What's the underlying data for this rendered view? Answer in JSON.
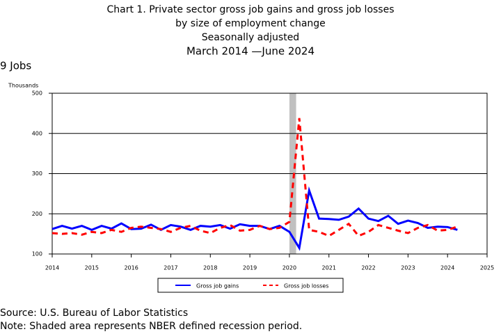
{
  "chart_data": {
    "type": "line",
    "title": [
      "Chart 1. Private sector gross job gains and gross job losses",
      "by size of employment change",
      "Seasonally adjusted",
      "March 2014 —June 2024"
    ],
    "subtitle": "9 Jobs",
    "y_label": "Thousands",
    "x": [
      2014,
      2014.25,
      2014.5,
      2014.75,
      2015,
      2015.25,
      2015.5,
      2015.75,
      2016,
      2016.25,
      2016.5,
      2016.75,
      2017,
      2017.25,
      2017.5,
      2017.75,
      2018,
      2018.25,
      2018.5,
      2018.75,
      2019,
      2019.25,
      2019.5,
      2019.75,
      2020,
      2020.25,
      2020.5,
      2020.75,
      2021,
      2021.25,
      2021.5,
      2021.75,
      2022,
      2022.25,
      2022.5,
      2022.75,
      2023,
      2023.25,
      2023.5,
      2023.75,
      2024,
      2024.25
    ],
    "series": [
      {
        "name": "Gross job gains",
        "color": "#0000ff",
        "dashed": false,
        "values": [
          162,
          170,
          163,
          170,
          160,
          170,
          163,
          176,
          162,
          163,
          173,
          160,
          172,
          168,
          160,
          170,
          168,
          172,
          163,
          174,
          170,
          170,
          162,
          170,
          155,
          115,
          258,
          188,
          187,
          185,
          193,
          213,
          188,
          182,
          195,
          175,
          183,
          177,
          165,
          168,
          167,
          160
        ]
      },
      {
        "name": "Gross job losses",
        "color": "#ff0000",
        "dashed": true,
        "values": [
          152,
          150,
          152,
          148,
          155,
          152,
          160,
          155,
          165,
          168,
          165,
          162,
          155,
          165,
          170,
          158,
          152,
          165,
          172,
          158,
          160,
          170,
          162,
          165,
          180,
          438,
          160,
          155,
          145,
          160,
          175,
          145,
          155,
          172,
          165,
          158,
          152,
          165,
          172,
          158,
          160,
          168
        ]
      }
    ],
    "recession": [
      2020,
      2020.17
    ],
    "recession_color": "#c0c0c0",
    "xlim": [
      2014,
      2025
    ],
    "xticks": [
      2014,
      2015,
      2016,
      2017,
      2018,
      2019,
      2020,
      2021,
      2022,
      2023,
      2024,
      2025
    ],
    "ylim": [
      100,
      500
    ],
    "yticks": [
      100,
      200,
      300,
      400,
      500
    ],
    "grid": true,
    "notes": [
      "Source: U.S. Bureau of Labor Statistics",
      "Note: Shaded area represents NBER defined recession period."
    ]
  }
}
